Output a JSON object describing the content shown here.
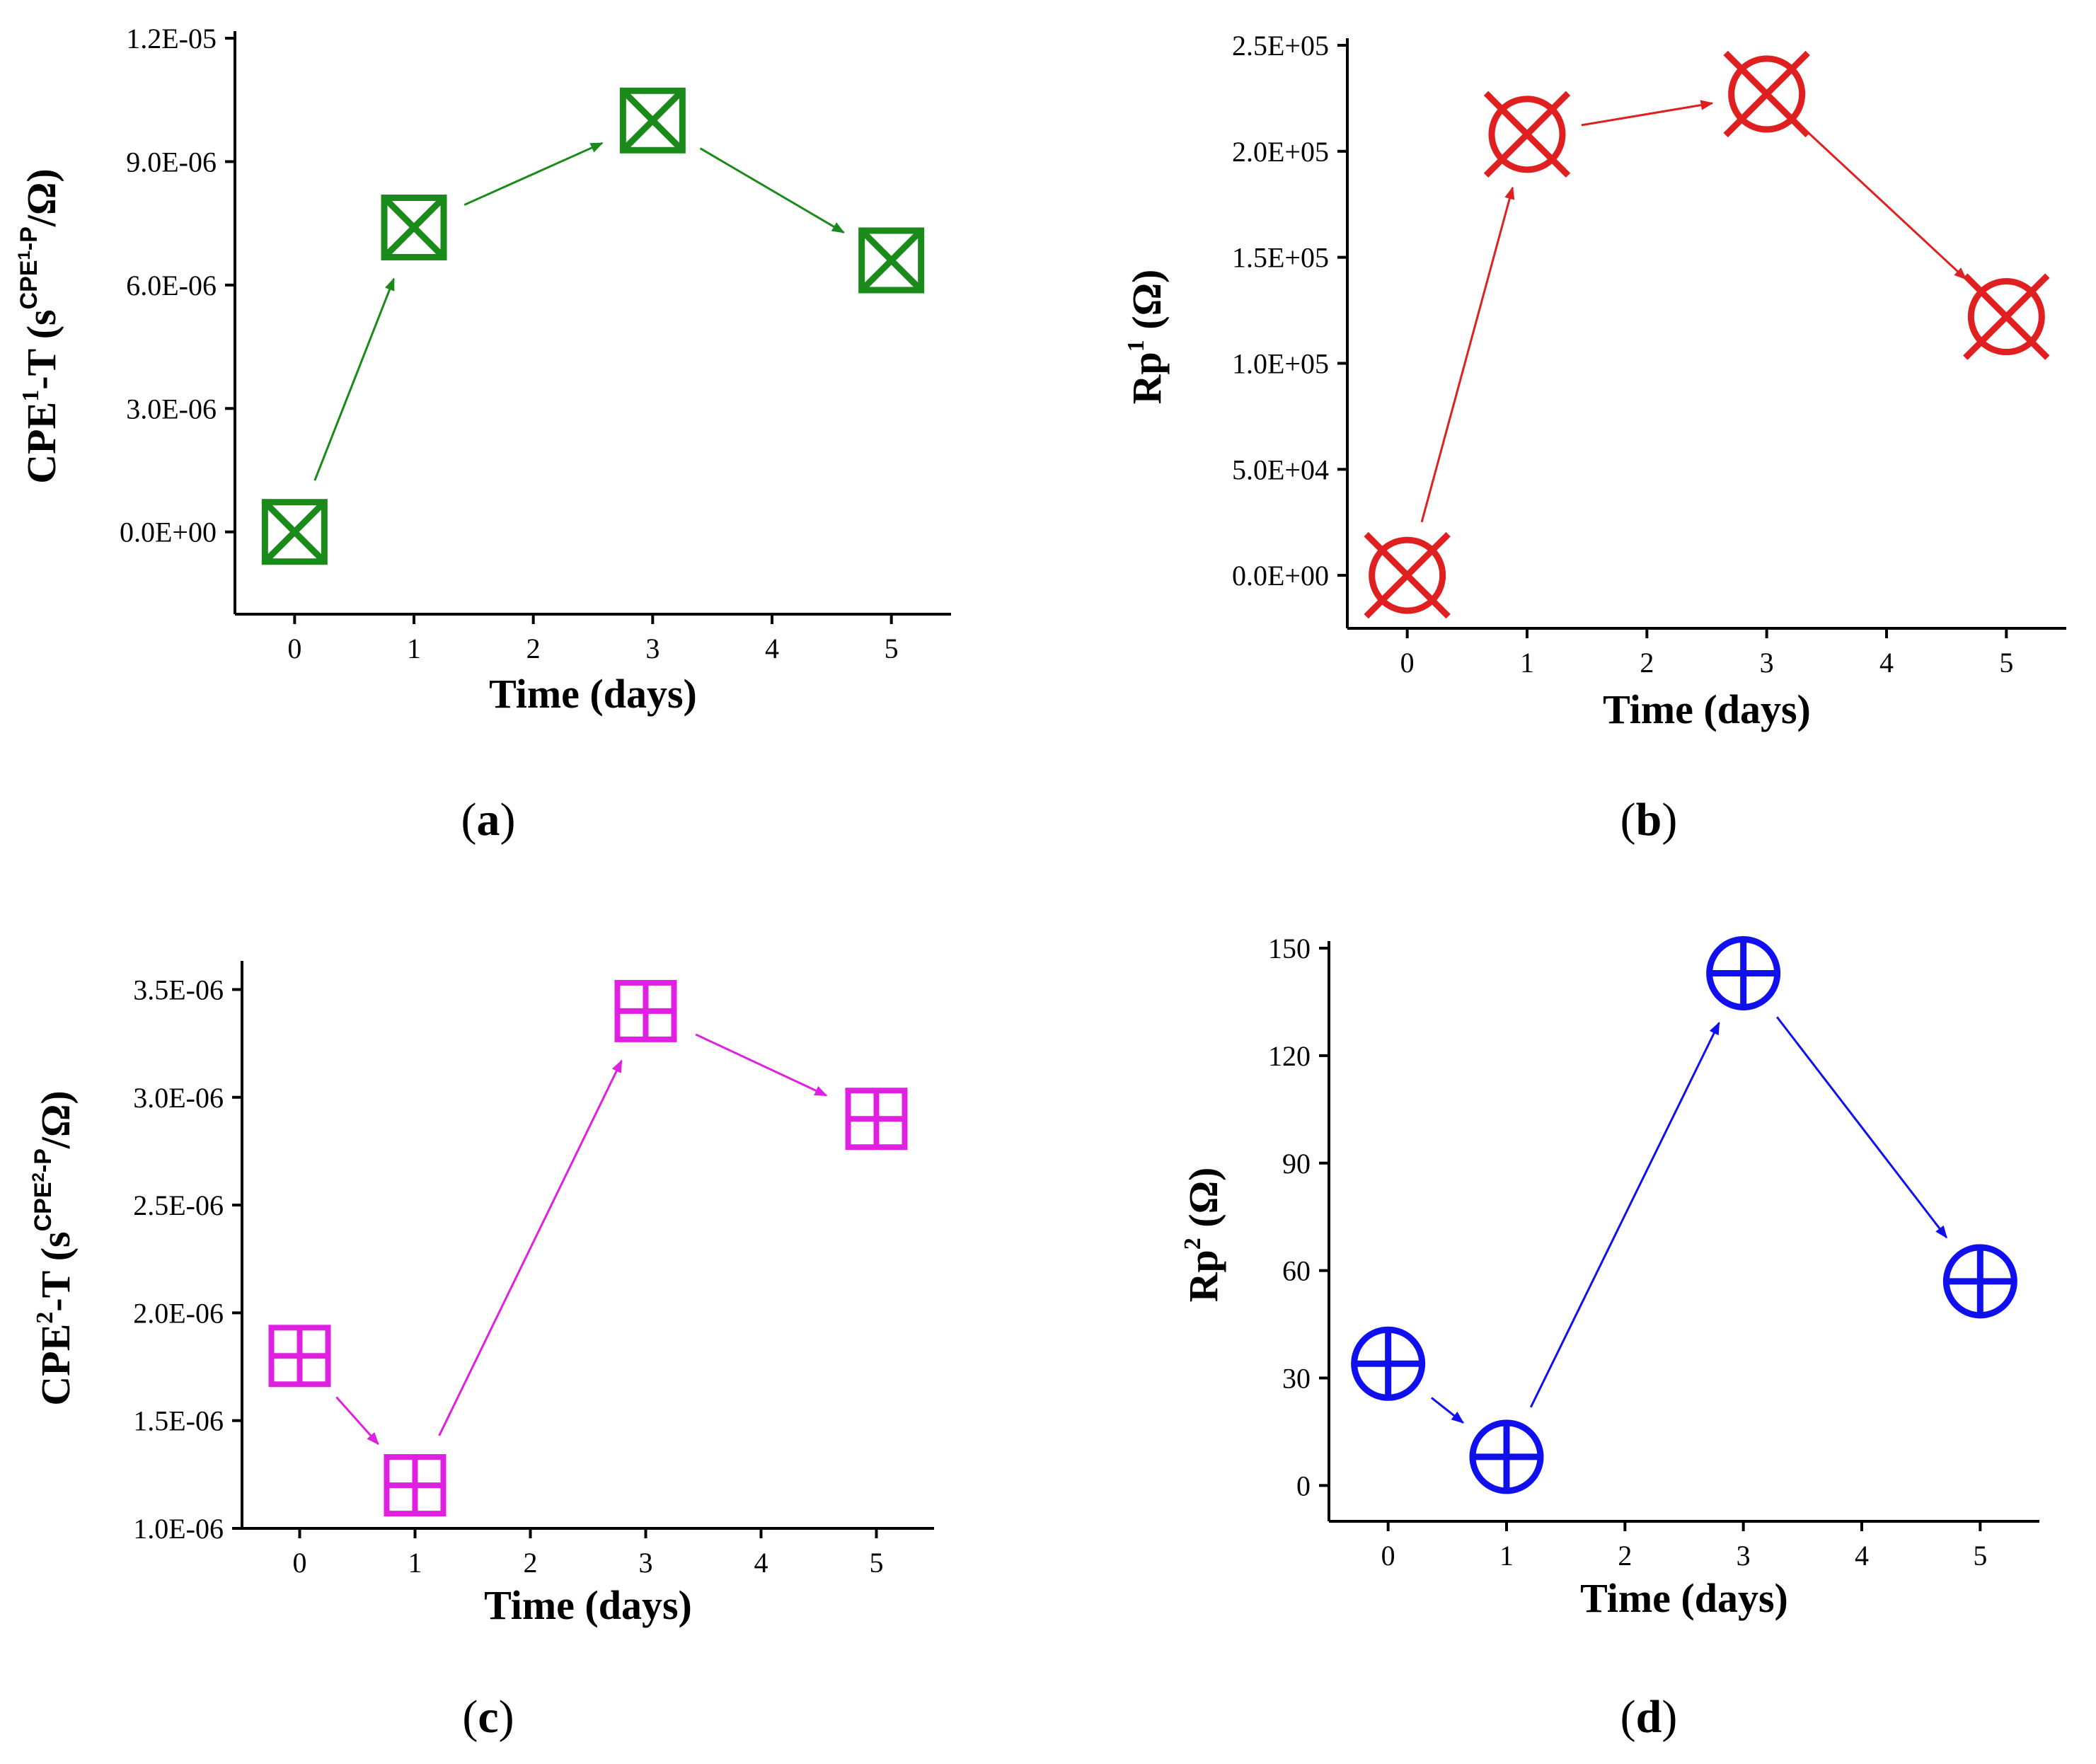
{
  "chart_data": [
    {
      "type": "scatter",
      "panel": "(a)",
      "panel_letter": "a",
      "xlabel": "Time (days)",
      "ylabel": {
        "base": "CPE",
        "base_sup": "1",
        "mid": "-T (s",
        "exp_base": "CPE",
        "exp_base_sup": "1",
        "exp_tail": "-P",
        "tail": "/Ω)"
      },
      "x_ticks": [
        0,
        1,
        2,
        3,
        4,
        5
      ],
      "y_ticks": [
        "0.0E+00",
        "3.0E-06",
        "6.0E-06",
        "9.0E-06",
        "1.2E-05"
      ],
      "xlim": [
        -0.5,
        5.5
      ],
      "ylim": [
        -2e-06,
        1.2e-05
      ],
      "x": [
        0,
        1,
        3,
        5
      ],
      "y": [
        0.0,
        7.4e-06,
        1e-05,
        6.6e-06
      ],
      "marker": "boxed-x",
      "color": "#1a8a1a",
      "connect_with_arrows": true
    },
    {
      "type": "scatter",
      "panel": "(b)",
      "panel_letter": "b",
      "xlabel": "Time (days)",
      "ylabel": {
        "base": "Rp",
        "base_sup": "1",
        "tail": " (Ω)"
      },
      "x_ticks": [
        0,
        1,
        2,
        3,
        4,
        5
      ],
      "y_ticks": [
        "0.0E+00",
        "5.0E+04",
        "1.0E+05",
        "1.5E+05",
        "2.0E+05",
        "2.5E+05"
      ],
      "xlim": [
        -0.5,
        5.5
      ],
      "ylim": [
        -25000.0,
        250000.0
      ],
      "x": [
        0,
        1,
        3,
        5
      ],
      "y": [
        0,
        208000.0,
        227000.0,
        122000.0
      ],
      "marker": "circled-x",
      "color": "#e02020",
      "connect_with_arrows": true
    },
    {
      "type": "scatter",
      "panel": "(c)",
      "panel_letter": "c",
      "xlabel": "Time (days)",
      "ylabel": {
        "base": "CPE",
        "base_sup": "2",
        "mid": "-T (s",
        "exp_base": "CPE",
        "exp_base_sup": "2",
        "exp_tail": "-P",
        "tail": "/Ω)"
      },
      "x_ticks": [
        0,
        1,
        2,
        3,
        4,
        5
      ],
      "y_ticks": [
        "1.0E-06",
        "1.5E-06",
        "2.0E-06",
        "2.5E-06",
        "3.0E-06",
        "3.5E-06"
      ],
      "xlim": [
        -0.5,
        5.5
      ],
      "ylim": [
        1e-06,
        3.6e-06
      ],
      "x": [
        0,
        1,
        3,
        5
      ],
      "y": [
        1.8e-06,
        1.2e-06,
        3.4e-06,
        2.9e-06
      ],
      "marker": "boxed-plus",
      "color": "#e020e0",
      "connect_with_arrows": true
    },
    {
      "type": "scatter",
      "panel": "(d)",
      "panel_letter": "d",
      "xlabel": "Time (days)",
      "ylabel": {
        "base": "Rp",
        "base_sup": "2",
        "tail": " (Ω)"
      },
      "x_ticks": [
        0,
        1,
        2,
        3,
        4,
        5
      ],
      "y_ticks": [
        "0",
        "30",
        "60",
        "90",
        "120",
        "150"
      ],
      "xlim": [
        -0.5,
        5.5
      ],
      "ylim": [
        -10,
        150
      ],
      "x": [
        0,
        1,
        3,
        5
      ],
      "y": [
        34,
        8,
        143,
        57
      ],
      "marker": "circled-plus",
      "color": "#1010ee",
      "connect_with_arrows": true
    }
  ]
}
